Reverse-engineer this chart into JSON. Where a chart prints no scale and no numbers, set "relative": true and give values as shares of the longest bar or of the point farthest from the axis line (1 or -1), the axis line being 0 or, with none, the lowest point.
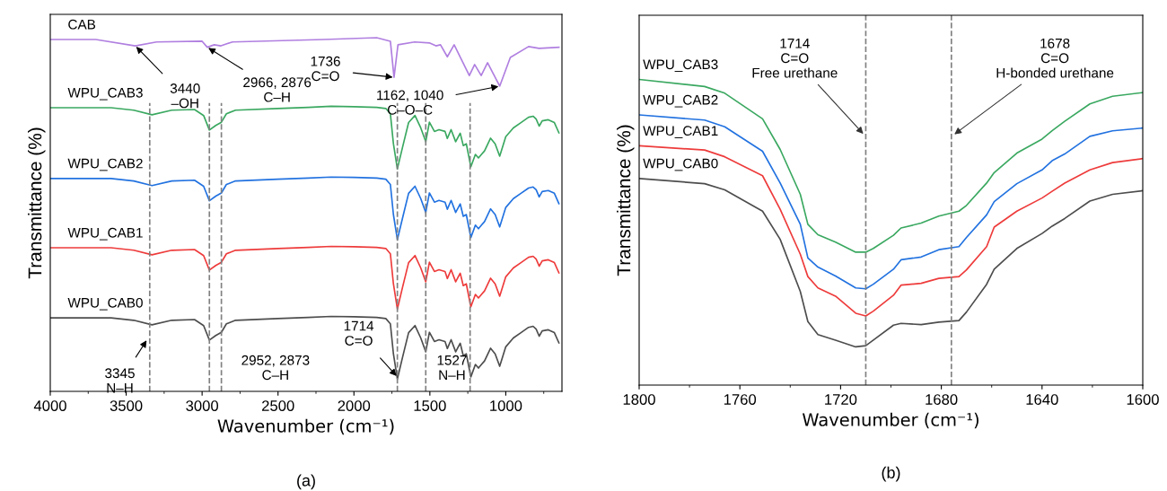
{
  "chart_data": [
    {
      "type": "line",
      "relative": true,
      "xlabel": "Wavenumber (cm⁻¹)",
      "ylabel": "Transmittance (%)",
      "xlim": [
        4000,
        630
      ],
      "xticks": [
        4000,
        3500,
        3000,
        2500,
        2000,
        1500,
        1000
      ],
      "tick_labels": "x",
      "grid": false,
      "legend": false,
      "line_style": "solid",
      "marker": "none",
      "x": [
        4000,
        3600,
        3450,
        3330,
        3200,
        3050,
        2990,
        2952,
        2910,
        2873,
        2840,
        2780,
        2500,
        2300,
        2150,
        2000,
        1850,
        1790,
        1760,
        1740,
        1714,
        1680,
        1640,
        1598,
        1560,
        1527,
        1503,
        1470,
        1440,
        1400,
        1385,
        1360,
        1330,
        1300,
        1280,
        1260,
        1230,
        1200,
        1180,
        1160,
        1140,
        1100,
        1070,
        1040,
        1000,
        950,
        900,
        850,
        820,
        800,
        780,
        760,
        720,
        680,
        650
      ],
      "series": [
        {
          "name": "CAB",
          "color": "#b07fe0",
          "x": [
            4000,
            3700,
            3440,
            3300,
            3000,
            2966,
            2920,
            2876,
            2800,
            2200,
            1850,
            1760,
            1736,
            1710,
            1600,
            1500,
            1460,
            1430,
            1385,
            1340,
            1240,
            1205,
            1162,
            1120,
            1040,
            970,
            850,
            780,
            650
          ],
          "values": [
            0.995,
            0.995,
            0.977,
            0.988,
            0.99,
            0.973,
            0.98,
            0.977,
            0.988,
            0.995,
            1.0,
            0.99,
            0.888,
            0.98,
            0.988,
            0.985,
            0.977,
            0.98,
            0.946,
            0.98,
            0.893,
            0.924,
            0.893,
            0.929,
            0.863,
            0.944,
            0.975,
            0.97,
            0.973
          ]
        },
        {
          "name": "WPU_CAB3",
          "color": "#3aa860",
          "values": [
            0.802,
            0.802,
            0.795,
            0.782,
            0.795,
            0.797,
            0.78,
            0.739,
            0.752,
            0.761,
            0.785,
            0.795,
            0.8,
            0.803,
            0.806,
            0.805,
            0.803,
            0.8,
            0.785,
            0.7,
            0.629,
            0.69,
            0.76,
            0.78,
            0.745,
            0.706,
            0.761,
            0.735,
            0.74,
            0.735,
            0.715,
            0.74,
            0.706,
            0.73,
            0.695,
            0.7,
            0.635,
            0.67,
            0.66,
            0.67,
            0.68,
            0.716,
            0.7,
            0.665,
            0.72,
            0.745,
            0.76,
            0.775,
            0.778,
            0.77,
            0.75,
            0.765,
            0.768,
            0.76,
            0.731
          ]
        },
        {
          "name": "WPU_CAB2",
          "color": "#2272e0",
          "values": [
            0.602,
            0.602,
            0.595,
            0.582,
            0.595,
            0.597,
            0.58,
            0.539,
            0.552,
            0.561,
            0.585,
            0.595,
            0.6,
            0.603,
            0.606,
            0.605,
            0.603,
            0.6,
            0.585,
            0.5,
            0.429,
            0.49,
            0.56,
            0.58,
            0.545,
            0.506,
            0.561,
            0.535,
            0.54,
            0.535,
            0.515,
            0.54,
            0.506,
            0.53,
            0.495,
            0.5,
            0.435,
            0.47,
            0.46,
            0.47,
            0.48,
            0.516,
            0.5,
            0.465,
            0.52,
            0.545,
            0.56,
            0.575,
            0.578,
            0.57,
            0.55,
            0.565,
            0.568,
            0.56,
            0.531
          ]
        },
        {
          "name": "WPU_CAB1",
          "color": "#ee3b3b",
          "values": [
            0.406,
            0.406,
            0.399,
            0.386,
            0.399,
            0.401,
            0.384,
            0.343,
            0.356,
            0.365,
            0.389,
            0.399,
            0.404,
            0.407,
            0.41,
            0.409,
            0.407,
            0.404,
            0.389,
            0.304,
            0.233,
            0.294,
            0.364,
            0.384,
            0.349,
            0.31,
            0.365,
            0.339,
            0.344,
            0.339,
            0.319,
            0.344,
            0.31,
            0.334,
            0.299,
            0.304,
            0.239,
            0.274,
            0.264,
            0.274,
            0.284,
            0.32,
            0.304,
            0.269,
            0.324,
            0.349,
            0.364,
            0.379,
            0.382,
            0.374,
            0.354,
            0.369,
            0.372,
            0.364,
            0.335
          ]
        },
        {
          "name": "WPU_CAB0",
          "color": "#4d4d4d",
          "values": [
            0.208,
            0.208,
            0.201,
            0.188,
            0.201,
            0.203,
            0.186,
            0.145,
            0.158,
            0.167,
            0.191,
            0.201,
            0.206,
            0.209,
            0.212,
            0.211,
            0.209,
            0.206,
            0.191,
            0.106,
            0.035,
            0.096,
            0.166,
            0.186,
            0.151,
            0.112,
            0.167,
            0.141,
            0.146,
            0.141,
            0.121,
            0.146,
            0.112,
            0.136,
            0.101,
            0.106,
            0.041,
            0.076,
            0.066,
            0.076,
            0.086,
            0.122,
            0.106,
            0.071,
            0.126,
            0.151,
            0.166,
            0.181,
            0.184,
            0.176,
            0.156,
            0.171,
            0.174,
            0.166,
            0.137
          ]
        }
      ],
      "ref_lines": [
        {
          "axis": "x",
          "value": 3345,
          "color": "#808080",
          "line_style": "dashed"
        },
        {
          "axis": "x",
          "value": 2952,
          "color": "#808080",
          "line_style": "dashed",
          "label": "2952, 2873\nC–H"
        },
        {
          "axis": "x",
          "value": 2873,
          "color": "#808080",
          "line_style": "dashed"
        },
        {
          "axis": "x",
          "value": 1714,
          "color": "#808080",
          "line_style": "dashed"
        },
        {
          "axis": "x",
          "value": 1527,
          "color": "#808080",
          "line_style": "dashed",
          "label": "1527\nN–H"
        },
        {
          "axis": "x",
          "value": 1235,
          "color": "#808080",
          "line_style": "dashed"
        }
      ],
      "annotations": [
        {
          "text": "3440\n–OH",
          "x": 3440,
          "y": 0.977
        },
        {
          "text": "2966, 2876\nC–H",
          "x": 2966,
          "y": 0.973
        },
        {
          "text": "1736\nC=O",
          "x": 1736,
          "y": 0.888
        },
        {
          "text": "1162, 1040\nC–O–C",
          "x": 1040,
          "y": 0.863
        },
        {
          "text": "3345\nN–H",
          "x": 3361,
          "y": 0.147
        },
        {
          "text": "1714\nC=O",
          "x": 1714,
          "y": 0.041
        },
        "(a)"
      ]
    },
    {
      "type": "line",
      "relative": true,
      "xlabel": "Wavenumber (cm⁻¹)",
      "ylabel": "Transmittance (%)",
      "xlim": [
        1800,
        1600
      ],
      "xticks": [
        1800,
        1760,
        1720,
        1680,
        1640,
        1600
      ],
      "tick_labels": "x",
      "grid": false,
      "legend": false,
      "line_style": "solid",
      "marker": "none",
      "x": [
        1800,
        1774,
        1766,
        1751,
        1744,
        1736,
        1733,
        1729,
        1722,
        1714,
        1710,
        1707,
        1699,
        1696,
        1688,
        1681,
        1673,
        1670,
        1662,
        1659,
        1650,
        1640,
        1636,
        1631,
        1621,
        1612,
        1600
      ],
      "series": [
        {
          "name": "WPU_CAB3",
          "color": "#3aa860",
          "values": [
            1.0,
            0.977,
            0.955,
            0.871,
            0.771,
            0.624,
            0.526,
            0.492,
            0.468,
            0.435,
            0.435,
            0.447,
            0.49,
            0.514,
            0.53,
            0.553,
            0.569,
            0.588,
            0.661,
            0.695,
            0.759,
            0.805,
            0.832,
            0.863,
            0.92,
            0.945,
            0.957
          ]
        },
        {
          "name": "WPU_CAB2",
          "color": "#2272e0",
          "values": [
            0.884,
            0.867,
            0.845,
            0.765,
            0.661,
            0.526,
            0.416,
            0.386,
            0.357,
            0.318,
            0.315,
            0.33,
            0.379,
            0.41,
            0.419,
            0.443,
            0.453,
            0.483,
            0.557,
            0.6,
            0.659,
            0.704,
            0.734,
            0.756,
            0.814,
            0.832,
            0.841
          ]
        },
        {
          "name": "WPU_CAB1",
          "color": "#ee3b3b",
          "values": [
            0.783,
            0.769,
            0.747,
            0.685,
            0.575,
            0.428,
            0.355,
            0.318,
            0.291,
            0.235,
            0.226,
            0.242,
            0.294,
            0.327,
            0.333,
            0.349,
            0.355,
            0.377,
            0.453,
            0.517,
            0.569,
            0.612,
            0.634,
            0.661,
            0.704,
            0.728,
            0.741
          ]
        },
        {
          "name": "WPU_CAB0",
          "color": "#4d4d4d",
          "values": [
            0.676,
            0.659,
            0.639,
            0.569,
            0.477,
            0.306,
            0.208,
            0.165,
            0.147,
            0.125,
            0.129,
            0.147,
            0.196,
            0.202,
            0.198,
            0.206,
            0.211,
            0.239,
            0.33,
            0.379,
            0.447,
            0.496,
            0.52,
            0.545,
            0.602,
            0.624,
            0.636
          ]
        }
      ],
      "ref_lines": [
        {
          "axis": "x",
          "value": 1710,
          "color": "#808080",
          "line_style": "dashed",
          "label": "1714\nC=O\nFree urethane"
        },
        {
          "axis": "x",
          "value": 1676,
          "color": "#808080",
          "line_style": "dashed",
          "label": "1678\nC=O\nH-bonded urethane"
        }
      ],
      "annotations": [
        "(b)"
      ]
    }
  ]
}
